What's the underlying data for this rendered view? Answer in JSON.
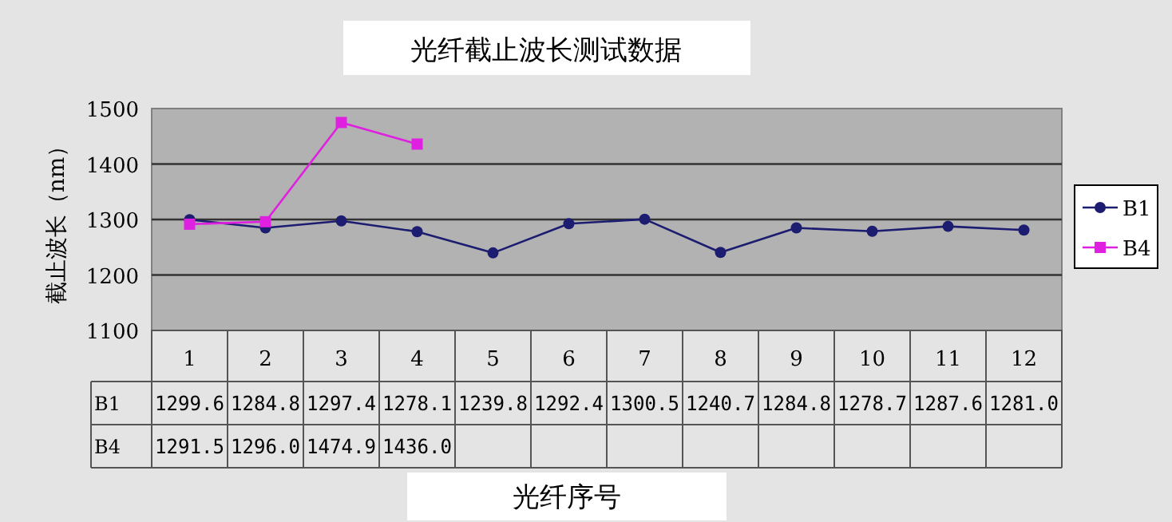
{
  "chart_data": {
    "type": "line",
    "title": "光纤截止波长测试数据",
    "xlabel": "光纤序号",
    "ylabel": "截止波长（nm）",
    "categories": [
      "1",
      "2",
      "3",
      "4",
      "5",
      "6",
      "7",
      "8",
      "9",
      "10",
      "11",
      "12"
    ],
    "series": [
      {
        "name": "B1",
        "color": "#1c1c70",
        "marker": "circle",
        "values": [
          1299.6,
          1284.8,
          1297.4,
          1278.1,
          1239.8,
          1292.4,
          1300.5,
          1240.7,
          1284.8,
          1278.7,
          1287.6,
          1281.0
        ],
        "value_labels": [
          "1299.6",
          "1284.8",
          "1297.4",
          "1278.1",
          "1239.8",
          "1292.4",
          "1300.5",
          "1240.7",
          "1284.8",
          "1278.7",
          "1287.6",
          "1281.0"
        ]
      },
      {
        "name": "B4",
        "color": "#e020e0",
        "marker": "square",
        "values": [
          1291.5,
          1296.0,
          1474.9,
          1436.0,
          null,
          null,
          null,
          null,
          null,
          null,
          null,
          null
        ],
        "value_labels": [
          "1291.5",
          "1296.0",
          "1474.9",
          "1436.0",
          null,
          null,
          null,
          null,
          null,
          null,
          null,
          null
        ]
      }
    ],
    "ylim": [
      1100,
      1500
    ],
    "yticks": [
      1100,
      1200,
      1300,
      1400,
      1500
    ],
    "grid": "y",
    "legend": "right"
  }
}
